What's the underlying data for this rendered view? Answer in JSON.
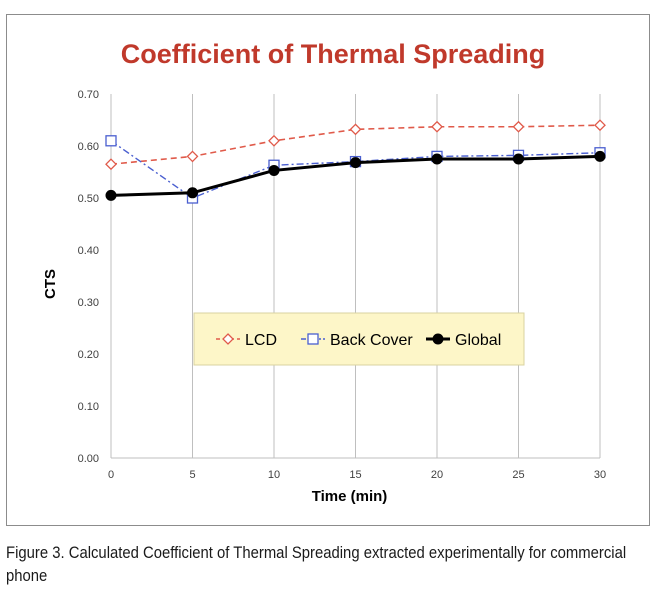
{
  "chart_data": {
    "type": "line",
    "title": "Coefficient of Thermal Spreading",
    "xlabel": "Time (min)",
    "ylabel": "CTS",
    "x": [
      0,
      5,
      10,
      15,
      20,
      25,
      30
    ],
    "xlim": [
      0,
      30
    ],
    "ylim": [
      0,
      0.7
    ],
    "x_ticks": [
      "0",
      "5",
      "10",
      "15",
      "20",
      "25",
      "30"
    ],
    "y_ticks": [
      "0.00",
      "0.10",
      "0.20",
      "0.30",
      "0.40",
      "0.50",
      "0.60",
      "0.70"
    ],
    "grid": "vertical",
    "legend_position": "center",
    "series": [
      {
        "name": "LCD",
        "values": [
          0.565,
          0.58,
          0.61,
          0.632,
          0.637,
          0.637,
          0.64
        ],
        "color": "#e05a4a",
        "style": "dashed",
        "marker": "diamond-open"
      },
      {
        "name": "Back Cover",
        "values": [
          0.61,
          0.5,
          0.563,
          0.57,
          0.58,
          0.582,
          0.587
        ],
        "color": "#4a5fd0",
        "style": "dashdot",
        "marker": "square-open"
      },
      {
        "name": "Global",
        "values": [
          0.505,
          0.51,
          0.553,
          0.568,
          0.575,
          0.575,
          0.58
        ],
        "color": "#000000",
        "style": "solid",
        "marker": "circle-filled"
      }
    ]
  },
  "colors": {
    "title": "#c0392b",
    "legend_background": "#fdf6c8"
  },
  "caption": {
    "text": "Figure 3.  Calculated Coefficient of Thermal Spreading extracted experimentally for commercial phone"
  }
}
